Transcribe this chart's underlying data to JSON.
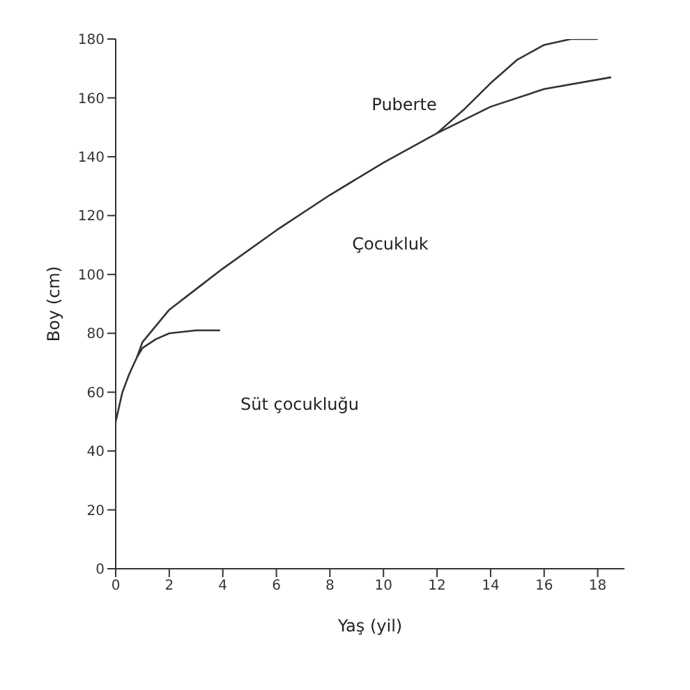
{
  "chart_data": {
    "type": "line",
    "xlabel": "Yaş (yil)",
    "ylabel": "Boy (cm)",
    "xlim": [
      0,
      19
    ],
    "ylim": [
      0,
      180
    ],
    "xticks": [
      0,
      2,
      4,
      6,
      8,
      10,
      12,
      14,
      16,
      18
    ],
    "yticks": [
      0,
      20,
      40,
      60,
      80,
      100,
      120,
      140,
      160,
      180
    ],
    "marker": "none",
    "line_style": "solid",
    "grid": false,
    "series": [
      {
        "color": "#333333",
        "x": [
          0,
          0.25,
          0.5,
          0.8,
          1,
          1.5,
          2,
          3,
          3.9
        ],
        "values": [
          50,
          60,
          66,
          72,
          75,
          78,
          80,
          81,
          81
        ]
      },
      {
        "color": "#333333",
        "x": [
          0.8,
          1,
          2,
          3,
          4,
          6,
          8,
          10,
          12,
          14,
          16,
          18.5
        ],
        "values": [
          72,
          77,
          88,
          95,
          102,
          115,
          127,
          138,
          148,
          157,
          163,
          167
        ]
      },
      {
        "color": "#333333",
        "x": [
          12,
          13,
          14,
          15,
          16,
          17,
          18
        ],
        "values": [
          148,
          156,
          165,
          173,
          178,
          180,
          180
        ]
      }
    ],
    "annotations": [
      "Puberte",
      "Çocukluk",
      "Süt çocukluğu"
    ]
  }
}
